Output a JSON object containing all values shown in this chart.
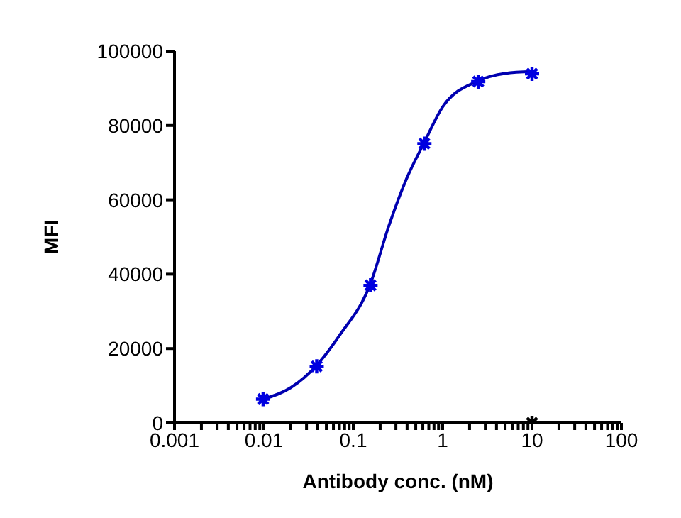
{
  "chart_data": {
    "type": "scatter",
    "xlabel": "Antibody conc. (nM)",
    "ylabel": "MFI",
    "log": "x",
    "grid": false,
    "marker": "cross",
    "xlim": [
      0.001,
      100
    ],
    "ylim": [
      0,
      100000
    ],
    "xticks": [
      0.001,
      {
        "value": 0.002,
        "label": null
      },
      {
        "value": 0.003,
        "label": null
      },
      {
        "value": 0.004,
        "label": null
      },
      {
        "value": 0.005,
        "label": null
      },
      {
        "value": 0.006,
        "label": null
      },
      {
        "value": 0.007,
        "label": null
      },
      {
        "value": 0.008,
        "label": null
      },
      {
        "value": 0.009,
        "label": null
      },
      0.01,
      {
        "value": 0.02,
        "label": null
      },
      {
        "value": 0.03,
        "label": null
      },
      {
        "value": 0.04,
        "label": null
      },
      {
        "value": 0.05,
        "label": null
      },
      {
        "value": 0.06,
        "label": null
      },
      {
        "value": 0.07,
        "label": null
      },
      {
        "value": 0.08,
        "label": null
      },
      {
        "value": 0.09,
        "label": null
      },
      0.1,
      {
        "value": 0.2,
        "label": null
      },
      {
        "value": 0.3,
        "label": null
      },
      {
        "value": 0.4,
        "label": null
      },
      {
        "value": 0.5,
        "label": null
      },
      {
        "value": 0.6,
        "label": null
      },
      {
        "value": 0.7,
        "label": null
      },
      {
        "value": 0.8,
        "label": null
      },
      {
        "value": 0.9,
        "label": null
      },
      1,
      {
        "value": 2,
        "label": null
      },
      {
        "value": 3,
        "label": null
      },
      {
        "value": 4,
        "label": null
      },
      {
        "value": 5,
        "label": null
      },
      {
        "value": 6,
        "label": null
      },
      {
        "value": 7,
        "label": null
      },
      {
        "value": 8,
        "label": null
      },
      {
        "value": 9,
        "label": null
      },
      10,
      {
        "value": 20,
        "label": null
      },
      {
        "value": 30,
        "label": null
      },
      {
        "value": 40,
        "label": null
      },
      {
        "value": 50,
        "label": null
      },
      {
        "value": 60,
        "label": null
      },
      {
        "value": 70,
        "label": null
      },
      {
        "value": 80,
        "label": null
      },
      {
        "value": 90,
        "label": null
      },
      100
    ],
    "yticks": [
      0,
      20000,
      40000,
      60000,
      80000,
      100000
    ],
    "series": [
      {
        "type": "line",
        "marker": "none",
        "color": "#0000b0",
        "x": [
          0.0098,
          0.02,
          0.039,
          0.07,
          0.156,
          0.25,
          0.4,
          0.625,
          1,
          2.5,
          5,
          10
        ],
        "values": [
          6400,
          9500,
          15500,
          23500,
          37500,
          53000,
          66000,
          75500,
          85000,
          92000,
          94000,
          94500
        ]
      },
      {
        "type": "scatter",
        "color": "#0000e0",
        "x": [
          0.0098,
          0.039,
          0.156,
          0.625,
          2.5,
          10
        ],
        "values": [
          6400,
          15200,
          37000,
          75100,
          91800,
          93900
        ]
      },
      {
        "type": "scatter",
        "color": "#000000",
        "x": [
          10
        ],
        "values": [
          0
        ]
      }
    ]
  }
}
